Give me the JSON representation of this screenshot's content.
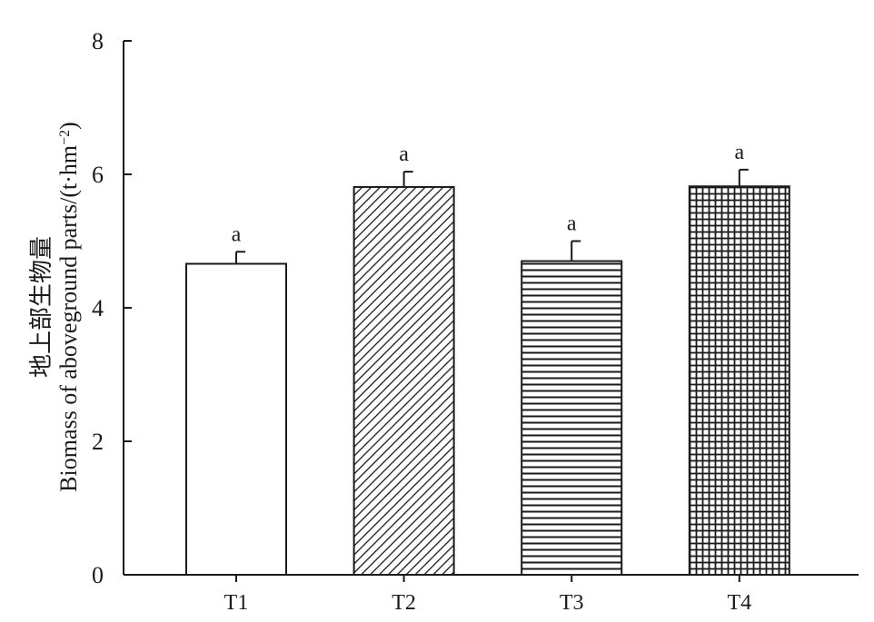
{
  "chart_data": {
    "type": "bar",
    "title": "",
    "xlabel": "",
    "ylabel_zh": "地上部生物量",
    "ylabel_en": "Biomass of aboveground parts/(t·hm",
    "ylabel_sup": "−2",
    "ylabel_close": ")",
    "ylim": [
      0,
      8
    ],
    "yticks": [
      "0",
      "2",
      "4",
      "6",
      "8"
    ],
    "categories": [
      "T1",
      "T2",
      "T3",
      "T4"
    ],
    "values": [
      4.66,
      5.81,
      4.7,
      5.82
    ],
    "errors": [
      0.18,
      0.23,
      0.3,
      0.25
    ],
    "significance": [
      "a",
      "a",
      "a",
      "a"
    ],
    "patterns": [
      "none",
      "diagonal",
      "horizontal",
      "grid"
    ],
    "grid": false,
    "legend": "none",
    "bar_edge_color": "#1a1a1a",
    "bar_fill_color": "#ffffff"
  }
}
